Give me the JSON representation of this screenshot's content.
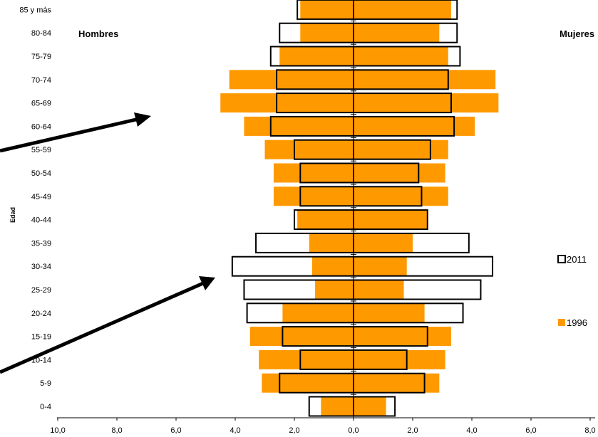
{
  "chart_data": {
    "type": "bar",
    "orientation": "horizontal-population-pyramid",
    "title": "",
    "ylabel": "Edad",
    "xlabel": "",
    "left_label": "Hombres",
    "right_label": "Mujeres",
    "x_ticks": [
      "10,0",
      "8,0",
      "6,0",
      "4,0",
      "2,0",
      "0,0",
      "2,0",
      "4,0",
      "6,0",
      "8,0"
    ],
    "xlim": [
      -10,
      8
    ],
    "categories": [
      "0-4",
      "5-9",
      "10-14",
      "15-19",
      "20-24",
      "25-29",
      "30-34",
      "35-39",
      "40-44",
      "45-49",
      "50-54",
      "55-59",
      "60-64",
      "65-69",
      "70-74",
      "75-79",
      "80-84",
      "85 y más"
    ],
    "series": [
      {
        "name": "1996",
        "color": "#FF9900",
        "style": "filled",
        "male": [
          1.1,
          3.1,
          3.2,
          3.5,
          2.4,
          1.3,
          1.4,
          1.5,
          1.9,
          2.7,
          2.7,
          3.0,
          3.7,
          4.5,
          4.2,
          2.5,
          1.8,
          1.8
        ],
        "female": [
          1.1,
          2.9,
          3.1,
          3.3,
          2.4,
          1.7,
          1.8,
          2.0,
          2.5,
          3.2,
          3.1,
          3.2,
          4.1,
          4.9,
          4.8,
          3.2,
          2.9,
          3.3
        ]
      },
      {
        "name": "2011",
        "color": "#000000",
        "style": "outline",
        "male": [
          1.5,
          2.5,
          1.8,
          2.4,
          3.6,
          3.7,
          4.1,
          3.3,
          2.0,
          1.8,
          1.8,
          2.0,
          2.8,
          2.6,
          2.6,
          2.8,
          2.5,
          1.9
        ],
        "female": [
          1.4,
          2.4,
          1.8,
          2.5,
          3.7,
          4.3,
          4.7,
          3.9,
          2.5,
          2.3,
          2.2,
          2.6,
          3.4,
          3.3,
          3.2,
          3.6,
          3.5,
          3.5
        ]
      }
    ],
    "legend_position": "right"
  }
}
